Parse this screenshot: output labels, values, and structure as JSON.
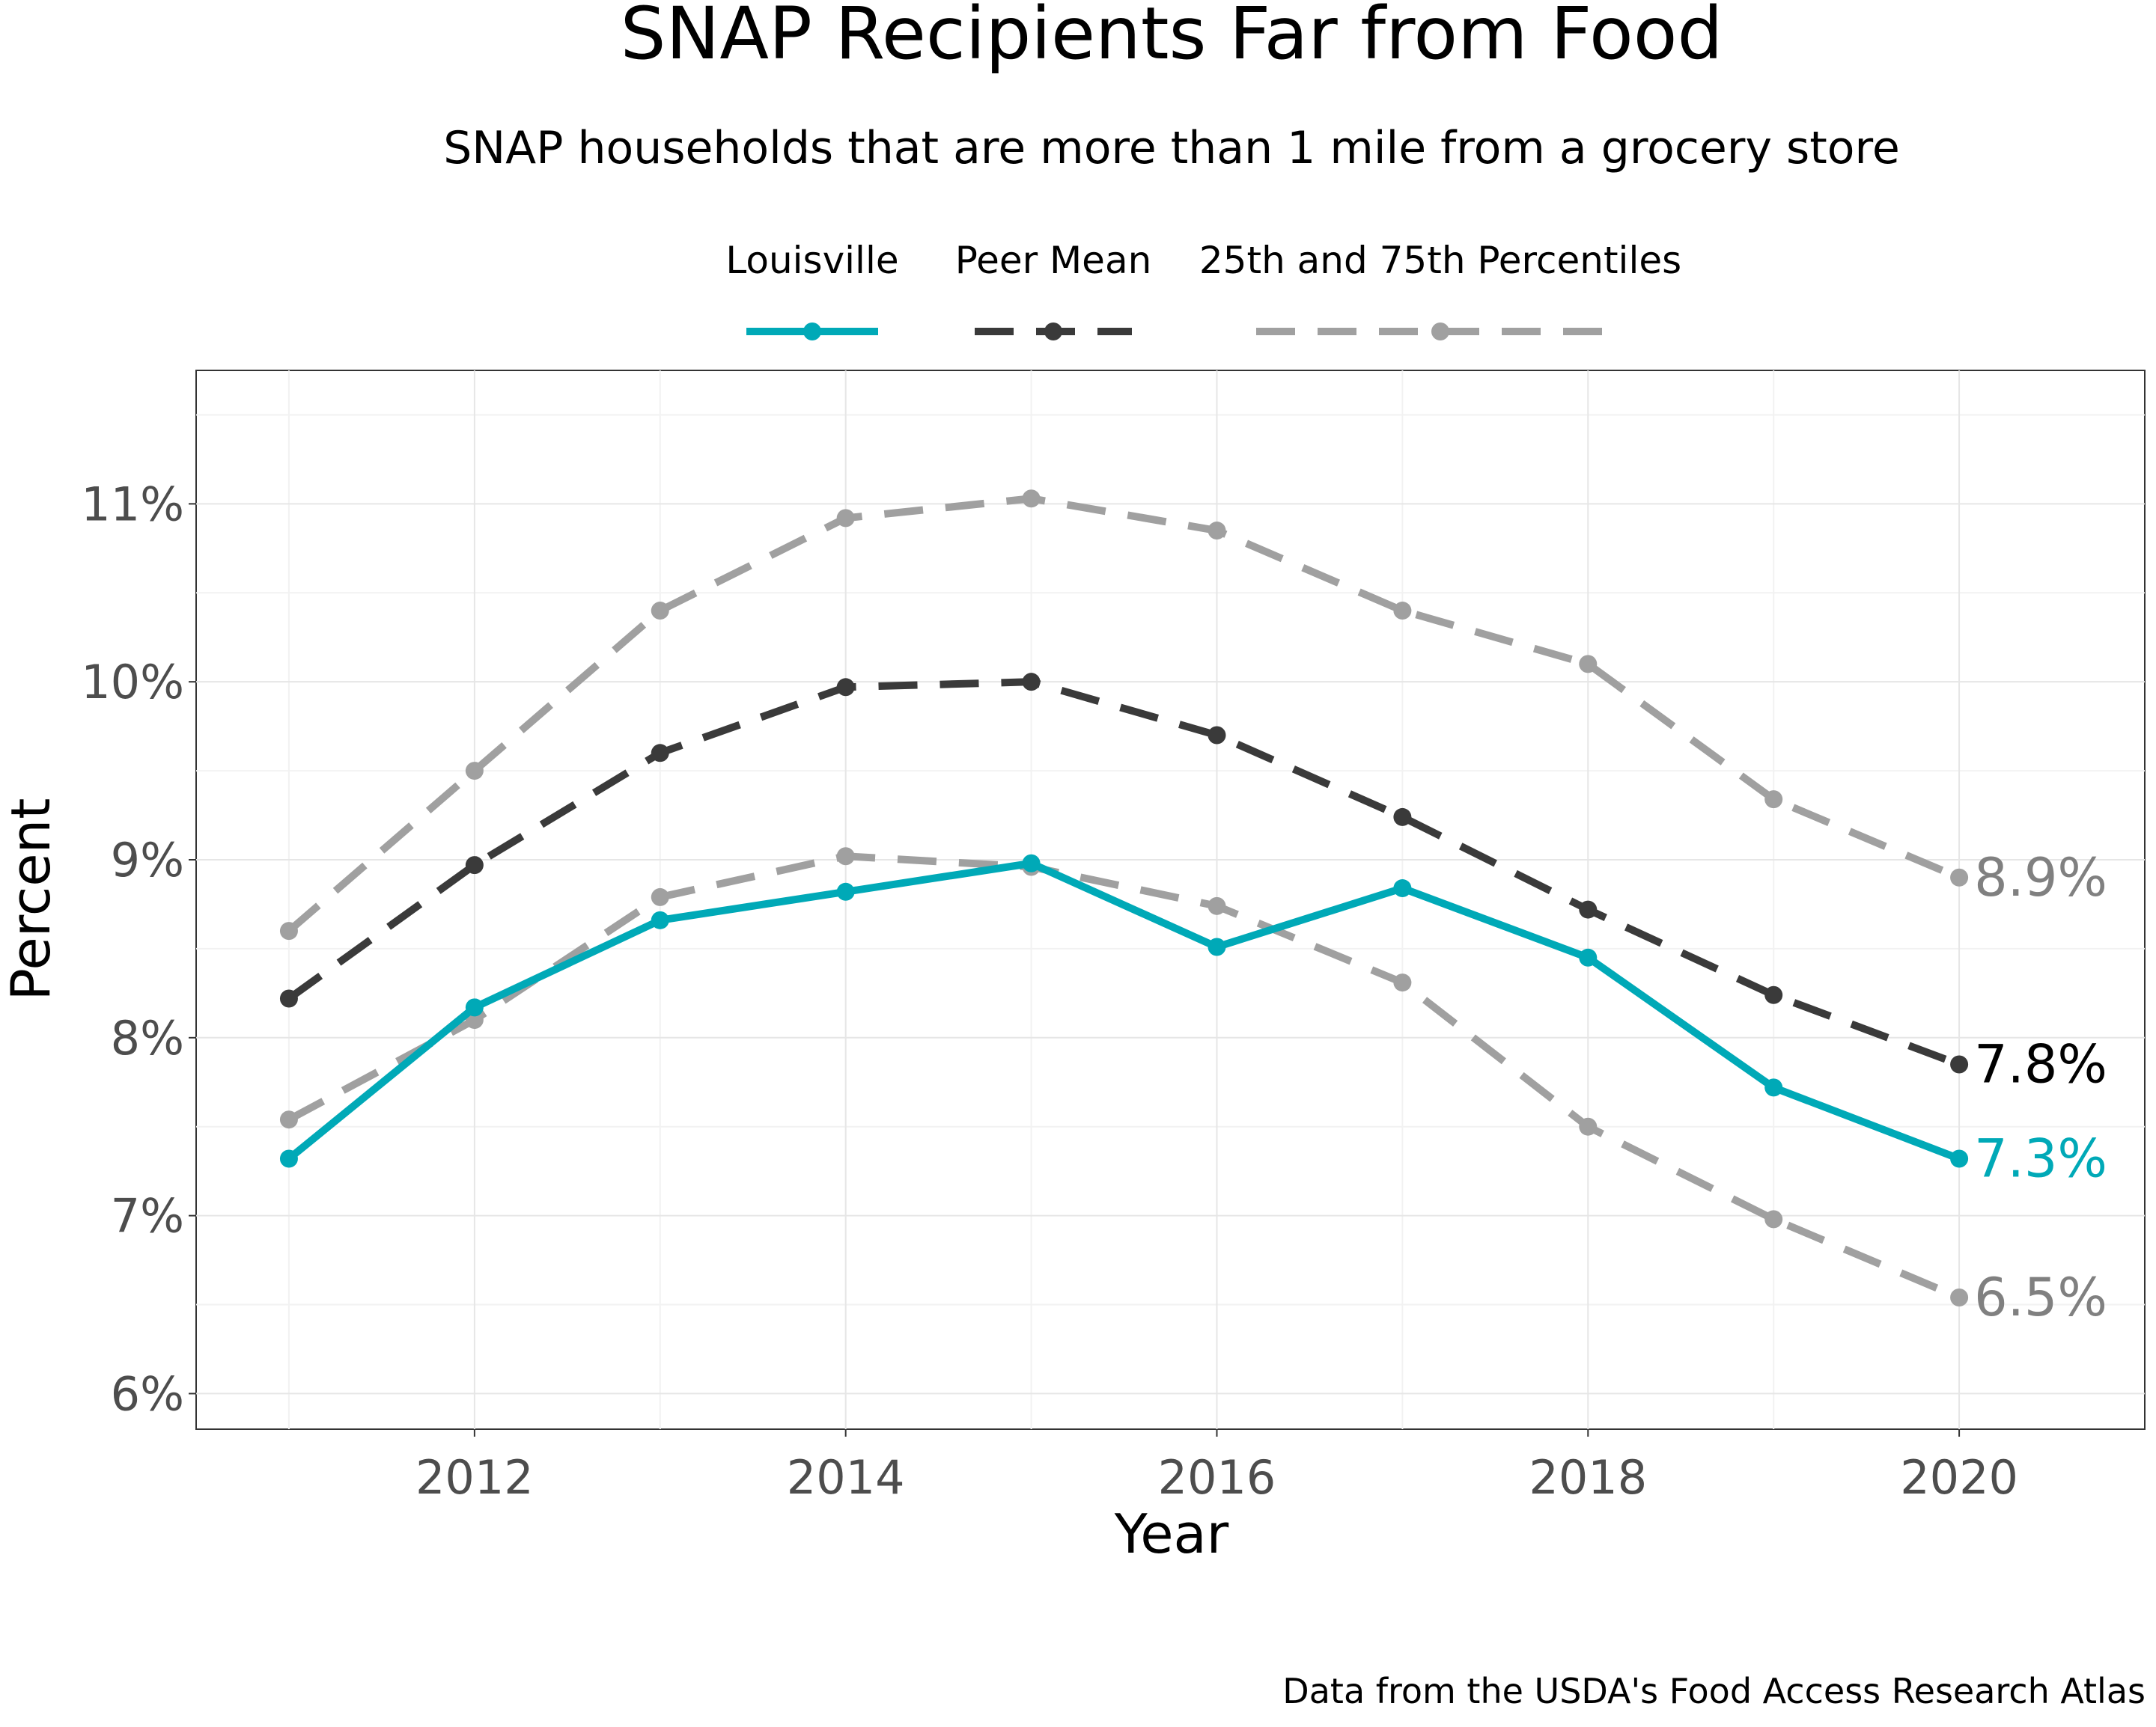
{
  "chart_data": {
    "type": "line",
    "title": "SNAP Recipients Far from Food",
    "subtitle": "SNAP households that are more than 1 mile from a grocery store",
    "xlabel": "Year",
    "ylabel": "Percent",
    "caption": "Data from the USDA's Food Access Research Atlas",
    "x": [
      2011,
      2012,
      2013,
      2014,
      2015,
      2016,
      2017,
      2018,
      2019,
      2020
    ],
    "xlim": [
      2010.5,
      2021.0
    ],
    "ylim": [
      5.8,
      11.75
    ],
    "x_ticks": [
      2012,
      2014,
      2016,
      2018,
      2020
    ],
    "x_tick_labels": [
      "2012",
      "2014",
      "2016",
      "2018",
      "2020"
    ],
    "y_ticks": [
      6,
      7,
      8,
      9,
      10,
      11
    ],
    "y_tick_labels": [
      "6%",
      "7%",
      "8%",
      "9%",
      "10%",
      "11%"
    ],
    "grid": true,
    "legend_position": "top",
    "legend": [
      {
        "label": "Louisville",
        "color": "#00a9b7",
        "style": "solid"
      },
      {
        "label": "Peer Mean",
        "color": "#3a3a3a",
        "style": "dashed"
      },
      {
        "label": "25th and 75th Percentiles",
        "color": "#a0a0a0",
        "style": "dashed"
      }
    ],
    "series": [
      {
        "key": "percentile-75",
        "color": "#a0a0a0",
        "style": "dashed",
        "values": [
          8.6,
          9.5,
          10.4,
          10.92,
          11.03,
          10.85,
          10.4,
          10.1,
          9.34,
          8.9
        ],
        "end_label": "8.9%",
        "end_label_color": "#808080"
      },
      {
        "key": "percentile-25",
        "color": "#a0a0a0",
        "style": "dashed",
        "values": [
          7.54,
          8.1,
          8.79,
          9.02,
          8.96,
          8.74,
          8.31,
          7.5,
          6.98,
          6.54
        ],
        "end_label": "6.5%",
        "end_label_color": "#808080"
      },
      {
        "name": "Peer Mean",
        "color": "#3a3a3a",
        "style": "dashed",
        "values": [
          8.22,
          8.97,
          9.6,
          9.97,
          10.0,
          9.7,
          9.24,
          8.72,
          8.24,
          7.85
        ],
        "end_label": "7.8%",
        "end_label_color": "#000000"
      },
      {
        "name": "Louisville",
        "color": "#00a9b7",
        "style": "solid",
        "values": [
          7.32,
          8.17,
          8.66,
          8.82,
          8.98,
          8.51,
          8.84,
          8.45,
          7.72,
          7.32
        ],
        "end_label": "7.3%",
        "end_label_color": "#00a9b7"
      }
    ]
  }
}
